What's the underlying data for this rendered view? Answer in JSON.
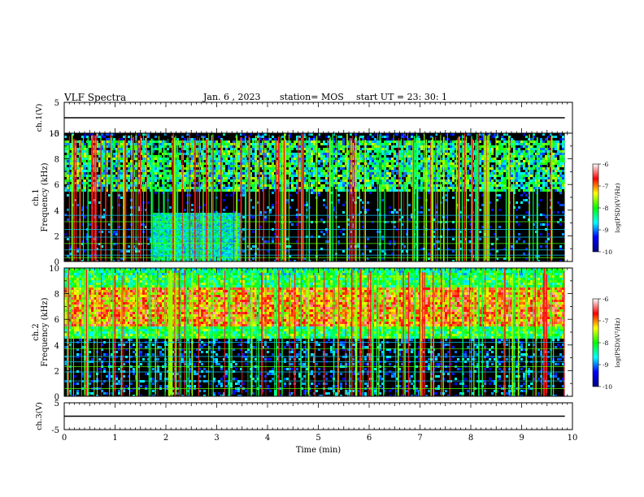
{
  "header": {
    "title": "VLF Spectra",
    "date": "Jan. 6 , 2023",
    "station": "station= MOS",
    "start": "start UT = 23: 30: 1"
  },
  "chart_data": {
    "type": "heatmap",
    "xlabel": "Time (min)",
    "xlim": [
      0,
      10
    ],
    "xticks": [
      "0",
      "1",
      "2",
      "3",
      "4",
      "5",
      "6",
      "7",
      "8",
      "9",
      "10"
    ],
    "panels": [
      {
        "id": "ch1v",
        "kind": "line",
        "ylabel": "ch.1(V)",
        "ylim": [
          -5,
          5
        ],
        "yticks": [
          "5",
          "-5"
        ],
        "series": [
          {
            "x": [
              0,
              9.85
            ],
            "y": [
              0,
              0
            ]
          }
        ]
      },
      {
        "id": "ch1",
        "kind": "spectrogram",
        "ylabel": "ch.1 Frequency (kHz)",
        "ylim": [
          0,
          10
        ],
        "yticks": [
          "0",
          "2",
          "4",
          "6",
          "8",
          "10"
        ],
        "data_end_min": 9.85,
        "dense_band_khz": [
          5.5,
          9.5
        ],
        "box_feature": {
          "x": [
            1.75,
            3.45
          ],
          "y": [
            0,
            3.8
          ]
        }
      },
      {
        "id": "ch2",
        "kind": "spectrogram",
        "ylabel": "ch.2 Frequency (kHz)",
        "ylim": [
          0,
          10
        ],
        "yticks": [
          "0",
          "2",
          "4",
          "6",
          "8",
          "10"
        ],
        "data_end_min": 9.85,
        "dense_band_khz": [
          4.5,
          9.5
        ],
        "intense_band_khz": [
          5.5,
          8.5
        ]
      },
      {
        "id": "ch3v",
        "kind": "line",
        "ylabel": "ch.3(V)",
        "ylim": [
          -5,
          5
        ],
        "yticks": [
          "5",
          "-5"
        ],
        "series": [
          {
            "x": [
              0,
              9.85
            ],
            "y": [
              0,
              0
            ]
          }
        ]
      }
    ],
    "colorbar": {
      "label": "log(PSD)(V²/Hz)",
      "range": [
        -10,
        -6
      ],
      "ticks": [
        "-6",
        "-7",
        "-8",
        "-9",
        "-10"
      ],
      "colors": [
        "#000080",
        "#0000ff",
        "#00ffff",
        "#00ff00",
        "#ffff00",
        "#ff0000",
        "#ffffff"
      ]
    }
  }
}
